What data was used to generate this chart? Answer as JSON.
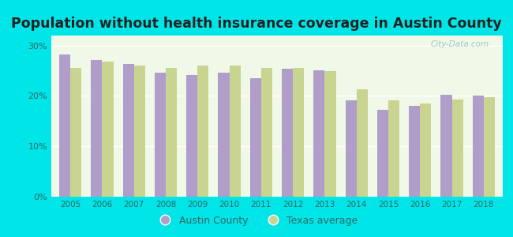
{
  "title": "Population without health insurance coverage in Austin County",
  "years": [
    2005,
    2006,
    2007,
    2008,
    2009,
    2010,
    2011,
    2012,
    2013,
    2014,
    2015,
    2016,
    2017,
    2018
  ],
  "austin_county": [
    28.2,
    27.2,
    26.4,
    24.6,
    24.2,
    24.6,
    23.5,
    25.4,
    25.1,
    19.2,
    17.2,
    18.0,
    20.3,
    20.0
  ],
  "texas_avg": [
    25.6,
    26.8,
    26.0,
    25.5,
    26.0,
    26.1,
    25.5,
    25.5,
    25.0,
    21.4,
    19.2,
    18.5,
    19.3,
    19.8
  ],
  "austin_color": "#b09dc9",
  "texas_color": "#c8d490",
  "background_outer": "#00e5e8",
  "background_inner": "#f0f8e8",
  "ylim": [
    0,
    32
  ],
  "yticks": [
    0,
    10,
    20,
    30
  ],
  "ytick_labels": [
    "0%",
    "10%",
    "20%",
    "30%"
  ],
  "title_fontsize": 12.5,
  "legend_labels": [
    "Austin County",
    "Texas average"
  ],
  "watermark": "City-Data.com"
}
